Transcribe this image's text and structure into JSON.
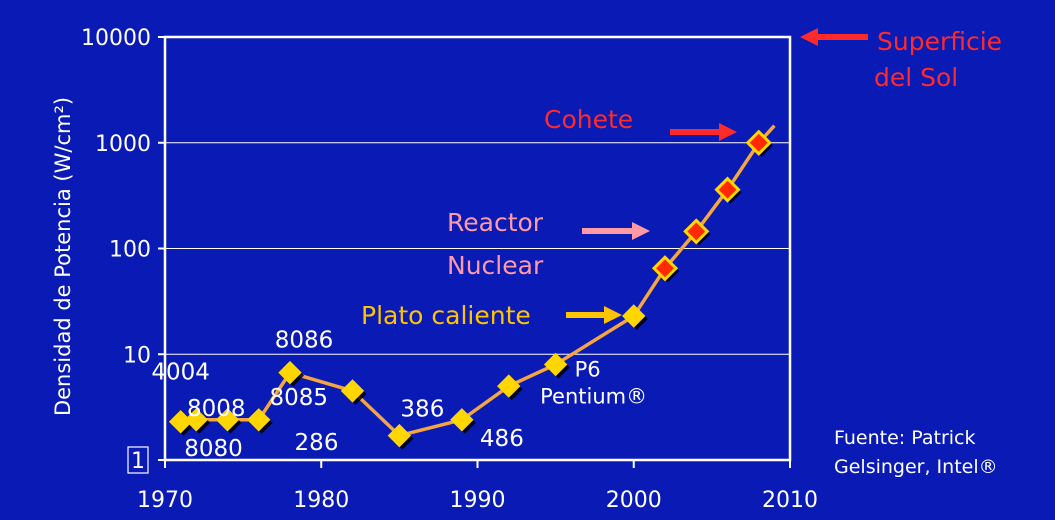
{
  "chart_data": {
    "type": "line",
    "ylabel": "Densidad de Potencia (W/cm²)",
    "xlabel": "",
    "x_ticks": [
      "1970",
      "1980",
      "1990",
      "2000",
      "2010"
    ],
    "y_ticks": [
      "1",
      "10",
      "100",
      "1000",
      "10000"
    ],
    "xlim": [
      1970,
      2010
    ],
    "ylim": [
      1,
      10000
    ],
    "y_scale": "log",
    "grid": "horizontal",
    "series": [
      {
        "name": "",
        "points": [
          {
            "x": 1971,
            "y": 2.3,
            "label": "4004"
          },
          {
            "x": 1972,
            "y": 2.4,
            "label": "8008"
          },
          {
            "x": 1974,
            "y": 2.4,
            "label": "8080"
          },
          {
            "x": 1976,
            "y": 2.4,
            "label": ""
          },
          {
            "x": 1978,
            "y": 6.7,
            "label": "8086"
          },
          {
            "x": 1982,
            "y": 4.5,
            "label": "286"
          },
          {
            "x": 1985,
            "y": 1.7,
            "label": "386"
          },
          {
            "x": 1989,
            "y": 2.4,
            "label": "486"
          },
          {
            "x": 1992,
            "y": 5.0,
            "label": ""
          },
          {
            "x": 1995,
            "y": 8.0,
            "label": "P6"
          },
          {
            "x": 2000,
            "y": 23,
            "label": ""
          },
          {
            "x": 2002,
            "y": 65,
            "label": ""
          },
          {
            "x": 2004,
            "y": 145,
            "label": ""
          },
          {
            "x": 2006,
            "y": 360,
            "label": ""
          },
          {
            "x": 2008,
            "y": 1000,
            "label": ""
          }
        ]
      }
    ],
    "extra_point_labels": {
      "8085": "8085",
      "pentium": "Pentium®"
    },
    "annotations": [
      {
        "text_lines": [
          "Superficie",
          "del Sol"
        ],
        "color": "#ff2a2a",
        "level": 10000
      },
      {
        "text_lines": [
          "Cohete"
        ],
        "color": "#ff2a2a",
        "level": 1000
      },
      {
        "text_lines": [
          "Reactor",
          "Nuclear"
        ],
        "color": "#ff9aa5",
        "level": 100
      },
      {
        "text_lines": [
          "Plato caliente"
        ],
        "color": "#ffc400",
        "level": 23
      }
    ],
    "source_lines": [
      "Fuente: Patrick",
      "Gelsinger, Intel®"
    ]
  },
  "colors": {
    "background": "#0a1ab5",
    "line": "#f4a640",
    "marker_low": "#ffd600",
    "marker_high": "#ff2a00",
    "axis": "#ffffff"
  }
}
